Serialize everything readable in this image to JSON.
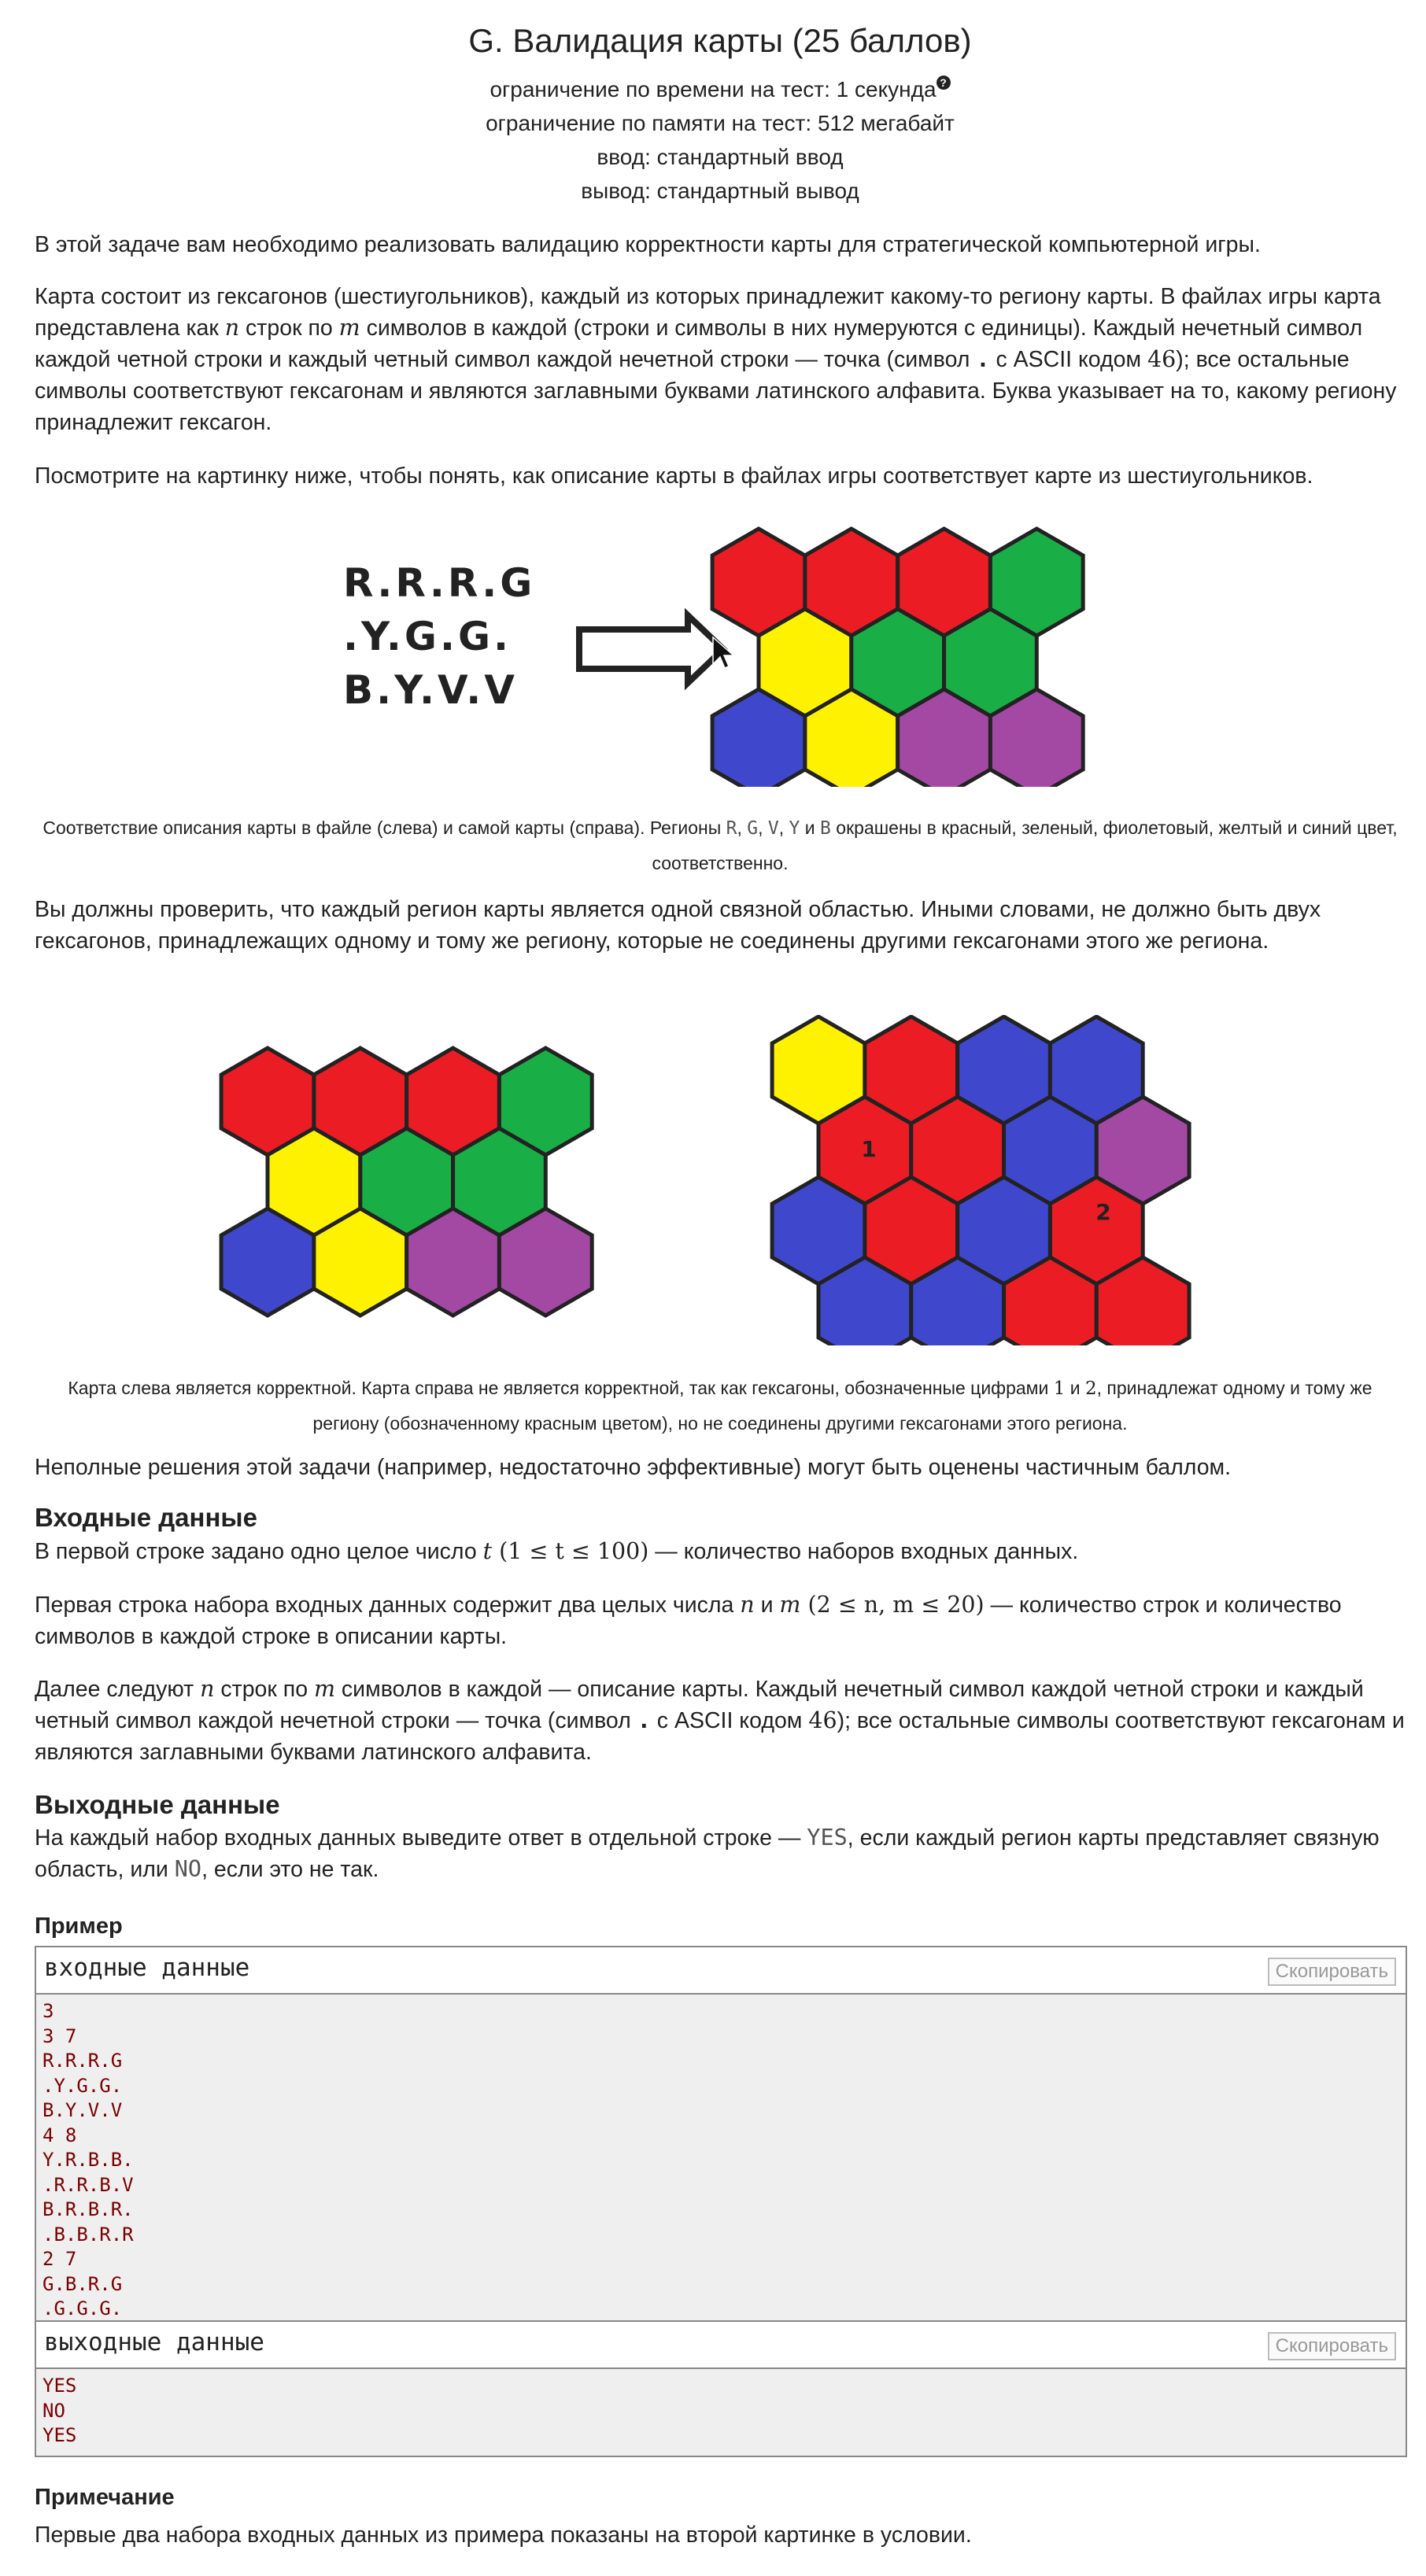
{
  "header": {
    "title": "G. Валидация карты (25 баллов)",
    "time_limit": "ограничение по времени на тест: 1 секунда",
    "help_icon": "?",
    "memory_limit": "ограничение по памяти на тест: 512 мегабайт",
    "input": "ввод: стандартный ввод",
    "output": "вывод: стандартный вывод"
  },
  "statement": {
    "p1": "В этой задаче вам необходимо реализовать валидацию корректности карты для стратегической компьютерной игры.",
    "p2": {
      "a": "Карта состоит из гексагонов (шестиугольников), каждый из которых принадлежит какому-то региону карты. В файлах игры карта представлена как ",
      "n": "n",
      "b": " строк по ",
      "m": "m",
      "c": " символов в каждой (строки и символы в них нумеруются с единицы). Каждый нечетный символ каждой четной строки и каждый четный символ каждой нечетной строки — точка (символ ",
      "dot": ".",
      "d": " с ASCII кодом ",
      "code": "46",
      "e": "); все остальные символы соответствуют гексагонам и являются заглавными буквами латинского алфавита. Буква указывает на то, какому региону принадлежит гексагон."
    },
    "p3": "Посмотрите на картинку ниже, чтобы понять, как описание карты в файлах игры соответствует карте из шестиугольников."
  },
  "figure1": {
    "map_lines": [
      "R.R.R.G",
      ".Y.G.G.",
      "B.Y.V.V"
    ],
    "caption": {
      "a": "Соответствие описания карты в файле (слева) и самой карты (справа). Регионы ",
      "r1": "R",
      "s1": ", ",
      "r2": "G",
      "s2": ", ",
      "r3": "V",
      "s3": ", ",
      "r4": "Y",
      "s4": " и ",
      "r5": "B",
      "b": " окрашены в красный, зеленый, фиолетовый, желтый и синий цвет, соответственно."
    }
  },
  "p4": "Вы должны проверить, что каждый регион карты является одной связной областью. Иными словами, не должно быть двух гексагонов, принадлежащих одному и тому же региону, которые не соединены другими гексагонами этого же региона.",
  "figure2": {
    "label1": "1",
    "label2": "2",
    "caption": {
      "a": "Карта слева является корректной. Карта справа не является корректной, так как гексагоны, обозначенные цифрами ",
      "n1": "1",
      "and": " и ",
      "n2": "2",
      "b": ", принадлежат одному и тому же региону (обозначенному красным цветом), но не соединены другими гексагонами этого региона."
    }
  },
  "p5": "Неполные решения этой задачи (например, недостаточно эффективные) могут быть оценены частичным баллом.",
  "input_section": {
    "title": "Входные данные",
    "p1": {
      "a": "В первой строке задано одно целое число ",
      "t": "t",
      "range": " (1 ≤ t ≤ 100)",
      "b": " — количество наборов входных данных."
    },
    "p2": {
      "a": "Первая строка набора входных данных содержит два целых числа ",
      "n": "n",
      "and": " и ",
      "m": "m",
      "range": " (2 ≤ n, m ≤ 20)",
      "b": " — количество строк и количество символов в каждой строке в описании карты."
    },
    "p3": {
      "a": "Далее следуют ",
      "n": "n",
      "b": " строк по ",
      "m": "m",
      "c": " символов в каждой — описание карты. Каждый нечетный символ каждой четной строки и каждый четный символ каждой нечетной строки — точка (символ ",
      "dot": ".",
      "d": " с ASCII кодом ",
      "code": "46",
      "e": "); все остальные символы соответствуют гексагонам и являются заглавными буквами латинского алфавита."
    }
  },
  "output_section": {
    "title": "Выходные данные",
    "p": {
      "a": "На каждый набор входных данных выведите ответ в отдельной строке — ",
      "yes": "YES",
      "b": ", если каждый регион карты представляет связную область, или ",
      "no": "NO",
      "c": ", если это не так."
    }
  },
  "example": {
    "title": "Пример",
    "input_label": "входные данные",
    "output_label": "выходные данные",
    "copy_label": "Скопировать",
    "input_lines": "3\n3 7\nR.R.R.G\n.Y.G.G.\nB.Y.V.V\n4 8\nY.R.B.B.\n.R.R.B.V\nB.R.B.R.\n.B.B.R.R\n2 7\nG.B.R.G\n.G.G.G.",
    "output_lines": "YES\nNO\nYES"
  },
  "note": {
    "title": "Примечание",
    "p": "Первые два набора входных данных из примера показаны на второй картинке в условии."
  },
  "colors": {
    "red": "#ec1c24",
    "green": "#1aae47",
    "yellow": "#fff200",
    "blue": "#3f48cc",
    "purple": "#a349a4",
    "outline": "#222222"
  },
  "hex_maps": {
    "fig1": [
      [
        "R",
        "R",
        "R",
        "G"
      ],
      [
        "Y",
        "G",
        "G"
      ],
      [
        "B",
        "Y",
        "V",
        "V"
      ]
    ],
    "fig2_left": [
      [
        "R",
        "R",
        "R",
        "G"
      ],
      [
        "Y",
        "G",
        "G"
      ],
      [
        "B",
        "Y",
        "V",
        "V"
      ]
    ],
    "fig2_right": [
      [
        "Y",
        "R",
        "B",
        "B"
      ],
      [
        "R",
        "R",
        "B",
        "V"
      ],
      [
        "B",
        "R",
        "B",
        "R"
      ],
      [
        "B",
        "B",
        "R",
        "R"
      ]
    ]
  }
}
